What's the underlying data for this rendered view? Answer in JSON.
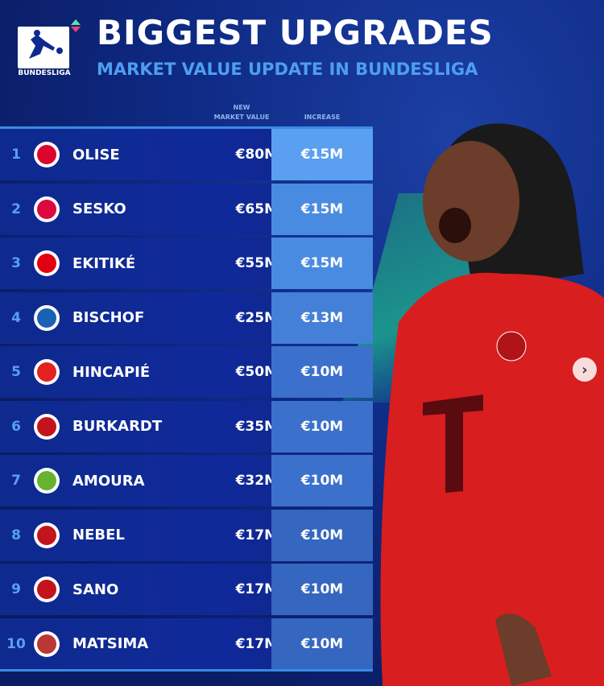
{
  "header": {
    "logo_text": "BUNDESLIGA",
    "title": "BIGGEST UPGRADES",
    "subtitle": "MARKET VALUE UPDATE IN BUNDESLIGA"
  },
  "columns": {
    "new_value_line1": "NEW",
    "new_value_line2": "MARKET VALUE",
    "increase": "INCREASE"
  },
  "rows": [
    {
      "rank": "1",
      "club": "bayern",
      "crest_color": "#dc052d",
      "name": "OLISE",
      "value": "€80M",
      "increase": "€15M",
      "inc_color": "#5a9ff0"
    },
    {
      "rank": "2",
      "club": "leipzig",
      "crest_color": "#dd0741",
      "name": "SESKO",
      "value": "€65M",
      "increase": "€15M",
      "inc_color": "#4a8be2"
    },
    {
      "rank": "3",
      "club": "frankfurt",
      "crest_color": "#e1000f",
      "name": "EKITIKÉ",
      "value": "€55M",
      "increase": "€15M",
      "inc_color": "#4a8be2"
    },
    {
      "rank": "4",
      "club": "hoffenheim",
      "crest_color": "#1961b5",
      "name": "BISCHOF",
      "value": "€25M",
      "increase": "€13M",
      "inc_color": "#447fd8"
    },
    {
      "rank": "5",
      "club": "leverkusen",
      "crest_color": "#e32221",
      "name": "HINCAPIÉ",
      "value": "€50M",
      "increase": "€10M",
      "inc_color": "#3b71cc"
    },
    {
      "rank": "6",
      "club": "mainz",
      "crest_color": "#c3141e",
      "name": "BURKARDT",
      "value": "€35M",
      "increase": "€10M",
      "inc_color": "#3b71cc"
    },
    {
      "rank": "7",
      "club": "wolfsburg",
      "crest_color": "#65b32e",
      "name": "AMOURA",
      "value": "€32M",
      "increase": "€10M",
      "inc_color": "#3b71cc"
    },
    {
      "rank": "8",
      "club": "mainz",
      "crest_color": "#c3141e",
      "name": "NEBEL",
      "value": "€17M",
      "increase": "€10M",
      "inc_color": "#3566c0"
    },
    {
      "rank": "9",
      "club": "mainz",
      "crest_color": "#c3141e",
      "name": "SANO",
      "value": "€17M",
      "increase": "€10M",
      "inc_color": "#3566c0"
    },
    {
      "rank": "10",
      "club": "augsburg",
      "crest_color": "#ba3733",
      "name": "MATSIMA",
      "value": "€17M",
      "increase": "€10M",
      "inc_color": "#3566c0"
    }
  ],
  "carousel": {
    "next_icon": "chevron-right-icon",
    "next_label": "›"
  }
}
